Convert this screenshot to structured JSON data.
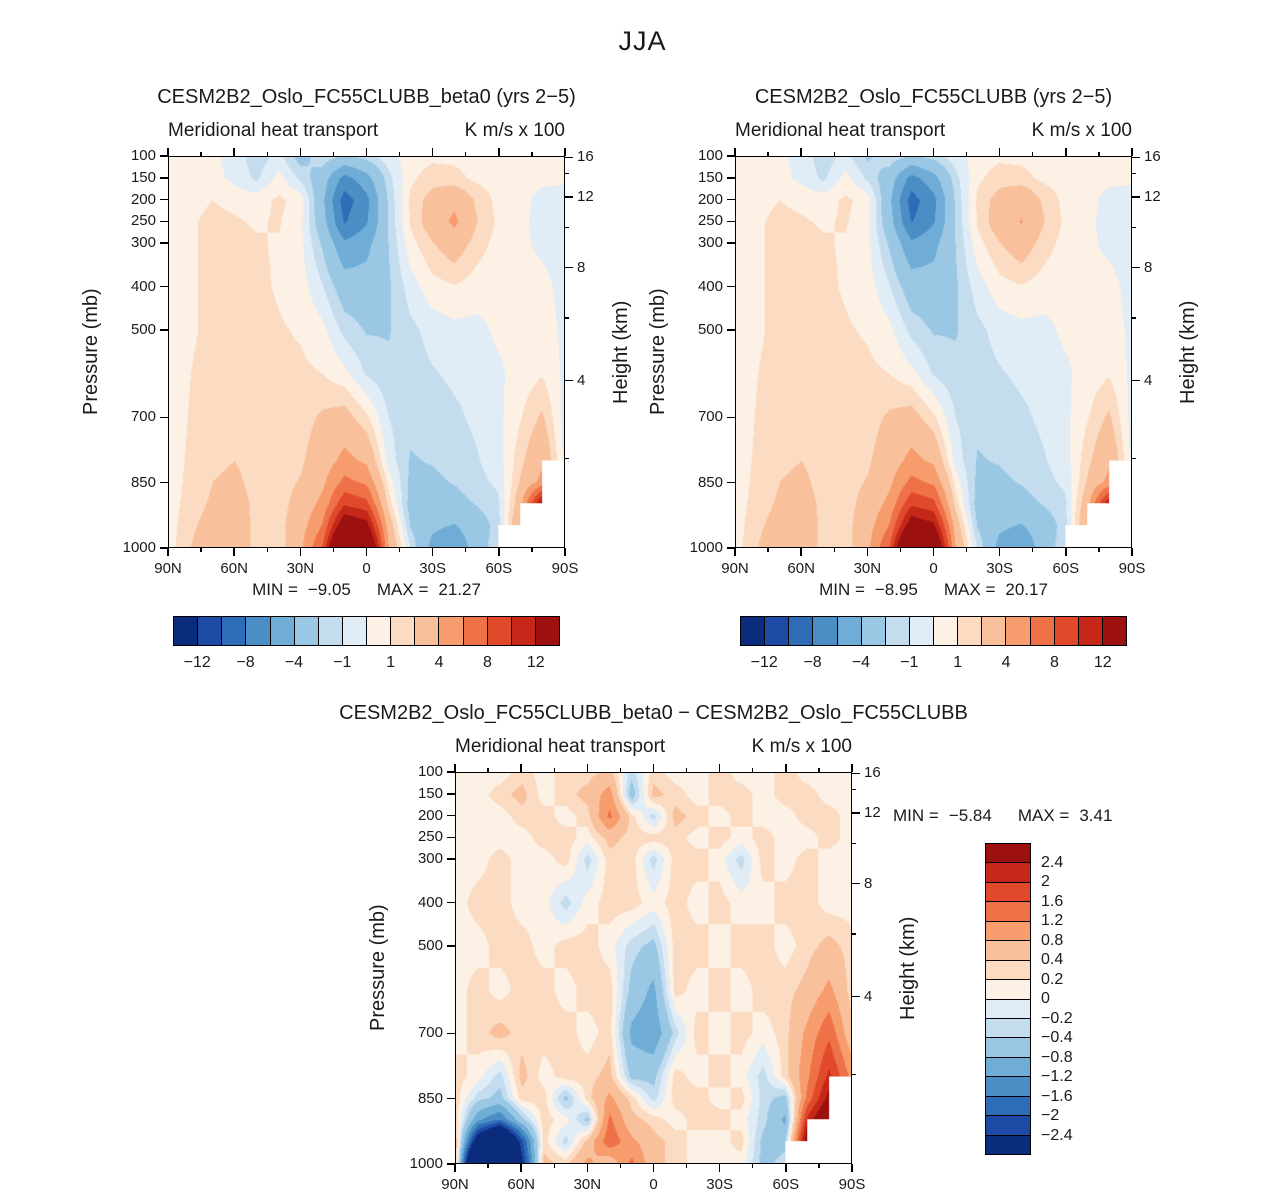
{
  "title": "JJA",
  "colors": {
    "palette": [
      "#0b2c7d",
      "#1e4ba5",
      "#2f6cb8",
      "#4a8ec5",
      "#6fadd6",
      "#9ac8e4",
      "#c3dcee",
      "#e0ecf6",
      "#fdf0e4",
      "#fbdcc3",
      "#f9c09c",
      "#f79c6d",
      "#ef7147",
      "#e04a2b",
      "#c52718",
      "#9d1010"
    ],
    "missing": "#ffffff",
    "text": "#1a1a1a",
    "axis": "#000000"
  },
  "axes": {
    "x_tick_labels": [
      "90N",
      "60N",
      "30N",
      "0",
      "30S",
      "60S",
      "90S"
    ],
    "x_tick_lats": [
      90,
      60,
      30,
      0,
      -30,
      -60,
      -90
    ],
    "x_minor_lats": [
      75,
      45,
      15,
      -15,
      -45,
      -75
    ],
    "pressure_ticks": [
      100,
      150,
      200,
      250,
      300,
      400,
      500,
      700,
      850,
      1000
    ],
    "height_ticks": [
      {
        "label": "16",
        "p": 103
      },
      {
        "label": "12",
        "p": 194
      },
      {
        "label": "8",
        "p": 356
      },
      {
        "label": "4",
        "p": 616
      }
    ],
    "height_minor_p": [
      141,
      265,
      472,
      795
    ]
  },
  "panels": [
    {
      "title": "CESM2B2_Oslo_FC55CLUBB_beta0 (yrs 2−5)",
      "subtitle_left": "Meridional heat transport",
      "subtitle_right": "K m/s x 100",
      "ylabel": "Pressure (mb)",
      "y2label": "Height (km)",
      "stats": {
        "min_label": "MIN =",
        "min_value": "−9.05",
        "max_label": "MAX =",
        "max_value": "21.27"
      },
      "colorbar_labels": [
        "−12",
        "−8",
        "−4",
        "−1",
        "1",
        "4",
        "8",
        "12"
      ]
    },
    {
      "title": "CESM2B2_Oslo_FC55CLUBB (yrs 2−5)",
      "subtitle_left": "Meridional heat transport",
      "subtitle_right": "K m/s x 100",
      "ylabel": "Pressure (mb)",
      "y2label": "Height (km)",
      "stats": {
        "min_label": "MIN =",
        "min_value": "−8.95",
        "max_label": "MAX =",
        "max_value": "20.17"
      },
      "colorbar_labels": [
        "−12",
        "−8",
        "−4",
        "−1",
        "1",
        "4",
        "8",
        "12"
      ]
    },
    {
      "title": "CESM2B2_Oslo_FC55CLUBB_beta0 − CESM2B2_Oslo_FC55CLUBB",
      "subtitle_left": "Meridional heat transport",
      "subtitle_right": "K m/s x 100",
      "ylabel": "Pressure (mb)",
      "y2label": "Height (km)",
      "stats": {
        "min_label": "MIN =",
        "min_value": "−5.84",
        "max_label": "MAX =",
        "max_value": "3.41"
      },
      "colorbar_labels": [
        "2.4",
        "2",
        "1.6",
        "1.2",
        "0.8",
        "0.4",
        "0.2",
        "0",
        "−0.2",
        "−0.4",
        "−0.8",
        "−1.2",
        "−1.6",
        "−2",
        "−2.4"
      ]
    }
  ],
  "chart_data": [
    {
      "type": "contour",
      "title": "CESM2B2_Oslo_FC55CLUBB_beta0 (yrs 2−5)",
      "field": "Meridional heat transport",
      "units": "K m/s x 100",
      "season": "JJA",
      "min": -9.05,
      "max": 21.27,
      "levels": [
        -12,
        -10,
        -8,
        -6,
        -4,
        -2,
        -1,
        0,
        1,
        2,
        4,
        6,
        8,
        10,
        12
      ],
      "lats": [
        90,
        80,
        70,
        60,
        50,
        40,
        30,
        20,
        10,
        0,
        -10,
        -20,
        -30,
        -40,
        -50,
        -60,
        -70,
        -80,
        -90
      ],
      "pressures": [
        100,
        150,
        200,
        250,
        300,
        400,
        500,
        600,
        700,
        800,
        850,
        900,
        950,
        1000
      ],
      "values": [
        [
          0.3,
          0.3,
          0.2,
          -0.4,
          -1.6,
          -0.6,
          -2.6,
          -1.2,
          -2.4,
          -1.6,
          -0.4,
          0.5,
          0.8,
          0.8,
          0.6,
          0.4,
          0.3,
          0.3,
          0.3
        ],
        [
          0.4,
          0.5,
          0.4,
          -0.3,
          -1.2,
          0.4,
          -1.2,
          -3.0,
          -6.8,
          -4.8,
          -1.4,
          0.8,
          1.5,
          1.3,
          0.8,
          0.5,
          0.3,
          0.2,
          0.2
        ],
        [
          0.5,
          0.8,
          1.0,
          0.8,
          0.6,
          1.2,
          0.6,
          -3.6,
          -9.0,
          -6.6,
          -1.8,
          1.2,
          2.6,
          3.6,
          1.8,
          0.7,
          0.3,
          -0.3,
          -0.5
        ],
        [
          0.5,
          0.9,
          1.2,
          1.1,
          0.9,
          1.1,
          0.3,
          -3.2,
          -8.2,
          -6.2,
          -1.9,
          1.1,
          2.9,
          4.4,
          2.1,
          0.8,
          0.2,
          -0.3,
          -0.5
        ],
        [
          0.5,
          0.9,
          1.2,
          1.2,
          1.1,
          0.9,
          0.3,
          -2.2,
          -5.6,
          -4.6,
          -2.0,
          0.6,
          1.9,
          2.9,
          1.5,
          0.6,
          0.2,
          -0.2,
          -0.4
        ],
        [
          0.4,
          0.9,
          1.2,
          1.3,
          1.2,
          0.9,
          0.5,
          -0.9,
          -2.9,
          -3.1,
          -2.2,
          -0.5,
          0.6,
          0.9,
          0.5,
          0.3,
          0.2,
          0.3,
          -0.3
        ],
        [
          0.4,
          0.9,
          1.2,
          1.4,
          1.3,
          1.1,
          0.9,
          0.3,
          -1.3,
          -2.1,
          -2.1,
          -1.3,
          -0.6,
          -0.3,
          -0.3,
          0.2,
          0.3,
          0.5,
          -0.2
        ],
        [
          0.4,
          1.0,
          1.3,
          1.5,
          1.4,
          1.2,
          1.2,
          1.0,
          0.3,
          -1.1,
          -1.7,
          -1.5,
          -1.1,
          -0.8,
          -0.6,
          -0.2,
          0.4,
          0.9,
          -0.2
        ],
        [
          0.4,
          1.1,
          1.5,
          1.8,
          1.5,
          1.3,
          1.5,
          2.2,
          2.6,
          1.2,
          -1.0,
          -1.7,
          -1.5,
          -1.2,
          -0.8,
          -0.3,
          0.9,
          2.2,
          -0.3
        ],
        [
          0.5,
          1.2,
          1.8,
          2.0,
          1.6,
          1.4,
          1.8,
          2.9,
          4.6,
          3.6,
          -0.4,
          -2.1,
          -1.9,
          -1.5,
          -1.1,
          -0.5,
          1.6,
          3.6,
          -0.2
        ],
        [
          0.5,
          1.3,
          2.0,
          2.2,
          1.7,
          1.5,
          2.1,
          3.6,
          6.6,
          5.6,
          0.6,
          -2.3,
          -2.3,
          -1.9,
          -1.3,
          -0.8,
          2.1,
          4.6,
          null
        ],
        [
          0.5,
          1.5,
          2.2,
          2.4,
          1.8,
          1.5,
          2.6,
          4.6,
          9.6,
          8.6,
          1.6,
          -2.6,
          -2.9,
          -2.6,
          -1.9,
          -1.2,
          3.1,
          13.0,
          null
        ],
        [
          0.5,
          1.8,
          2.5,
          2.5,
          1.8,
          1.5,
          3.1,
          6.1,
          14.5,
          13.0,
          3.1,
          -2.1,
          -3.6,
          -4.1,
          -2.9,
          -1.5,
          4.1,
          null,
          null
        ],
        [
          0.6,
          2.0,
          2.8,
          2.5,
          1.8,
          1.3,
          3.6,
          8.1,
          21.3,
          18.0,
          4.1,
          -1.1,
          -4.6,
          -5.6,
          -3.1,
          -1.1,
          null,
          null,
          null
        ]
      ]
    },
    {
      "type": "contour",
      "title": "CESM2B2_Oslo_FC55CLUBB (yrs 2−5)",
      "field": "Meridional heat transport",
      "units": "K m/s x 100",
      "season": "JJA",
      "min": -8.95,
      "max": 20.17,
      "levels": [
        -12,
        -10,
        -8,
        -6,
        -4,
        -2,
        -1,
        0,
        1,
        2,
        4,
        6,
        8,
        10,
        12
      ],
      "lats": [
        90,
        80,
        70,
        60,
        50,
        40,
        30,
        20,
        10,
        0,
        -10,
        -20,
        -30,
        -40,
        -50,
        -60,
        -70,
        -80,
        -90
      ],
      "pressures": [
        100,
        150,
        200,
        250,
        300,
        400,
        500,
        600,
        700,
        800,
        850,
        900,
        950,
        1000
      ],
      "values": [
        [
          0.3,
          0.3,
          0.2,
          -0.4,
          -1.6,
          -0.6,
          -2.2,
          -1.2,
          -2.4,
          -1.6,
          -0.4,
          0.5,
          0.8,
          0.8,
          0.6,
          0.4,
          0.3,
          0.3,
          0.3
        ],
        [
          0.4,
          0.5,
          0.4,
          -0.3,
          -1.2,
          0.4,
          -1.2,
          -3.0,
          -6.8,
          -4.8,
          -1.4,
          0.8,
          1.5,
          1.3,
          0.8,
          0.5,
          0.3,
          0.2,
          0.2
        ],
        [
          0.5,
          0.8,
          1.0,
          0.8,
          0.6,
          1.2,
          0.6,
          -3.6,
          -8.9,
          -6.6,
          -1.8,
          1.2,
          2.6,
          3.6,
          1.8,
          0.7,
          0.3,
          -0.3,
          -0.5
        ],
        [
          0.5,
          0.9,
          1.2,
          1.1,
          0.9,
          1.1,
          0.3,
          -3.2,
          -8.1,
          -6.2,
          -1.9,
          1.1,
          2.9,
          4.1,
          2.1,
          0.8,
          0.2,
          -0.3,
          -0.5
        ],
        [
          0.5,
          0.9,
          1.2,
          1.2,
          1.1,
          0.9,
          0.3,
          -2.2,
          -5.6,
          -4.6,
          -2.0,
          0.6,
          1.9,
          2.9,
          1.5,
          0.6,
          0.2,
          -0.2,
          -0.4
        ],
        [
          0.4,
          0.9,
          1.2,
          1.3,
          1.2,
          0.9,
          0.5,
          -0.9,
          -2.9,
          -3.1,
          -2.2,
          -0.5,
          0.6,
          0.9,
          0.5,
          0.3,
          0.2,
          0.3,
          -0.3
        ],
        [
          0.4,
          0.9,
          1.2,
          1.4,
          1.3,
          1.1,
          0.9,
          0.3,
          -1.3,
          -2.1,
          -2.1,
          -1.3,
          -0.6,
          -0.3,
          -0.3,
          0.2,
          0.3,
          0.5,
          -0.2
        ],
        [
          0.4,
          1.0,
          1.3,
          1.5,
          1.4,
          1.2,
          1.2,
          1.0,
          0.3,
          -1.1,
          -1.7,
          -1.5,
          -1.1,
          -0.8,
          -0.6,
          -0.2,
          0.4,
          0.9,
          -0.2
        ],
        [
          0.4,
          1.1,
          1.5,
          1.8,
          1.5,
          1.3,
          1.5,
          2.2,
          2.6,
          1.2,
          -1.0,
          -1.7,
          -1.5,
          -1.2,
          -0.8,
          -0.3,
          0.9,
          2.2,
          -0.3
        ],
        [
          0.5,
          1.2,
          1.8,
          2.0,
          1.6,
          1.4,
          1.8,
          2.9,
          4.6,
          3.6,
          -0.4,
          -2.1,
          -1.9,
          -1.5,
          -1.1,
          -0.5,
          1.6,
          3.6,
          -0.2
        ],
        [
          0.5,
          1.3,
          2.0,
          2.2,
          1.7,
          1.5,
          2.1,
          3.6,
          6.6,
          5.6,
          0.6,
          -2.3,
          -2.3,
          -1.9,
          -1.3,
          -0.8,
          2.1,
          4.6,
          null
        ],
        [
          0.5,
          1.5,
          2.2,
          2.4,
          1.8,
          1.5,
          2.6,
          4.6,
          9.6,
          8.6,
          1.6,
          -2.6,
          -2.9,
          -2.6,
          -1.9,
          -1.2,
          3.1,
          12.0,
          null
        ],
        [
          0.5,
          1.8,
          2.5,
          2.5,
          1.8,
          1.5,
          3.1,
          6.1,
          13.8,
          12.5,
          3.1,
          -2.1,
          -3.6,
          -4.1,
          -2.9,
          -1.5,
          4.1,
          null,
          null
        ],
        [
          0.6,
          2.0,
          2.8,
          2.5,
          1.8,
          1.3,
          3.6,
          8.1,
          20.2,
          17.0,
          4.1,
          -1.1,
          -4.6,
          -5.6,
          -3.1,
          -1.1,
          null,
          null,
          null
        ]
      ]
    },
    {
      "type": "contour",
      "title": "CESM2B2_Oslo_FC55CLUBB_beta0 − CESM2B2_Oslo_FC55CLUBB",
      "field": "Meridional heat transport difference",
      "units": "K m/s x 100",
      "season": "JJA",
      "min": -5.84,
      "max": 3.41,
      "levels": [
        -2.4,
        -2,
        -1.6,
        -1.2,
        -0.8,
        -0.4,
        -0.2,
        0,
        0.2,
        0.4,
        0.8,
        1.2,
        1.6,
        2,
        2.4
      ],
      "lats": [
        90,
        80,
        70,
        60,
        50,
        40,
        30,
        20,
        10,
        0,
        -10,
        -20,
        -30,
        -40,
        -50,
        -60,
        -70,
        -80,
        -90
      ],
      "pressures": [
        100,
        150,
        200,
        250,
        300,
        400,
        500,
        600,
        700,
        800,
        850,
        900,
        950,
        1000
      ],
      "values": [
        [
          0.1,
          0.1,
          0.1,
          0.3,
          0.1,
          0.3,
          0.3,
          0.5,
          -0.3,
          0.3,
          0.1,
          0.1,
          0.3,
          0.1,
          0.1,
          0.3,
          0.1,
          0.1,
          0.1
        ],
        [
          0.1,
          0.1,
          0.3,
          0.5,
          0.1,
          0.3,
          0.5,
          1.0,
          -0.6,
          0.5,
          0.3,
          0.1,
          0.3,
          0.3,
          0.1,
          0.3,
          0.3,
          0.1,
          0.1
        ],
        [
          0.1,
          0.1,
          0.1,
          0.3,
          0.3,
          0.1,
          0.3,
          1.3,
          0.3,
          -0.3,
          0.5,
          0.3,
          0.1,
          0.3,
          0.1,
          0.1,
          0.3,
          0.3,
          0.1
        ],
        [
          0.1,
          0.1,
          0.1,
          0.1,
          0.3,
          0.3,
          0.1,
          0.5,
          0.3,
          0.3,
          0.3,
          0.1,
          0.3,
          0.1,
          0.3,
          0.1,
          0.1,
          0.3,
          0.1
        ],
        [
          0.1,
          0.1,
          0.3,
          0.1,
          0.1,
          0.3,
          -0.3,
          0.3,
          0.3,
          -0.3,
          0.3,
          0.3,
          0.1,
          -0.3,
          0.3,
          0.1,
          0.3,
          0.1,
          0.1
        ],
        [
          0.1,
          0.3,
          0.3,
          0.1,
          0.1,
          -0.3,
          0.1,
          0.3,
          0.3,
          0.1,
          0.3,
          0.1,
          0.3,
          0.1,
          0.1,
          0.3,
          0.3,
          0.1,
          0.1
        ],
        [
          0.1,
          0.1,
          0.3,
          0.3,
          0.1,
          0.3,
          0.3,
          0.1,
          -0.3,
          -0.5,
          0.3,
          0.3,
          0.1,
          0.3,
          0.3,
          0.1,
          0.3,
          0.5,
          0.3
        ],
        [
          0.1,
          0.3,
          0.1,
          0.3,
          0.3,
          0.1,
          0.3,
          0.3,
          -0.5,
          -0.9,
          0.3,
          0.1,
          0.3,
          0.1,
          0.3,
          0.3,
          0.5,
          0.9,
          0.3
        ],
        [
          0.1,
          0.3,
          0.5,
          0.3,
          0.3,
          0.3,
          0.1,
          0.3,
          -0.9,
          -1.1,
          -0.3,
          0.3,
          0.1,
          0.3,
          0.1,
          0.3,
          0.9,
          1.5,
          0.5
        ],
        [
          0.3,
          0.1,
          -0.3,
          0.5,
          0.1,
          0.3,
          0.3,
          0.5,
          -0.5,
          -0.5,
          0.3,
          0.1,
          0.3,
          0.1,
          -0.3,
          0.3,
          1.1,
          2.1,
          1.1
        ],
        [
          0.3,
          -0.3,
          -0.5,
          0.3,
          0.3,
          -0.5,
          0.3,
          0.9,
          0.3,
          -0.3,
          0.3,
          0.3,
          0.1,
          0.3,
          -0.3,
          -0.5,
          1.3,
          2.6,
          null
        ],
        [
          0.3,
          -1.1,
          -1.6,
          -0.5,
          0.3,
          0.1,
          -0.5,
          1.3,
          0.5,
          0.3,
          0.1,
          0.3,
          0.3,
          0.1,
          -0.3,
          -0.9,
          2.1,
          3.3,
          null
        ],
        [
          0.5,
          -3.1,
          -4.6,
          -2.1,
          0.3,
          -0.3,
          0.5,
          1.5,
          0.9,
          0.5,
          0.3,
          0.1,
          0.1,
          0.3,
          -0.5,
          -0.5,
          2.9,
          null,
          null
        ],
        [
          0.5,
          -5.8,
          -5.1,
          -2.6,
          0.5,
          0.3,
          0.9,
          0.5,
          1.3,
          0.5,
          0.3,
          0.1,
          0.1,
          0.1,
          -0.5,
          -0.3,
          null,
          null,
          null
        ]
      ]
    }
  ]
}
